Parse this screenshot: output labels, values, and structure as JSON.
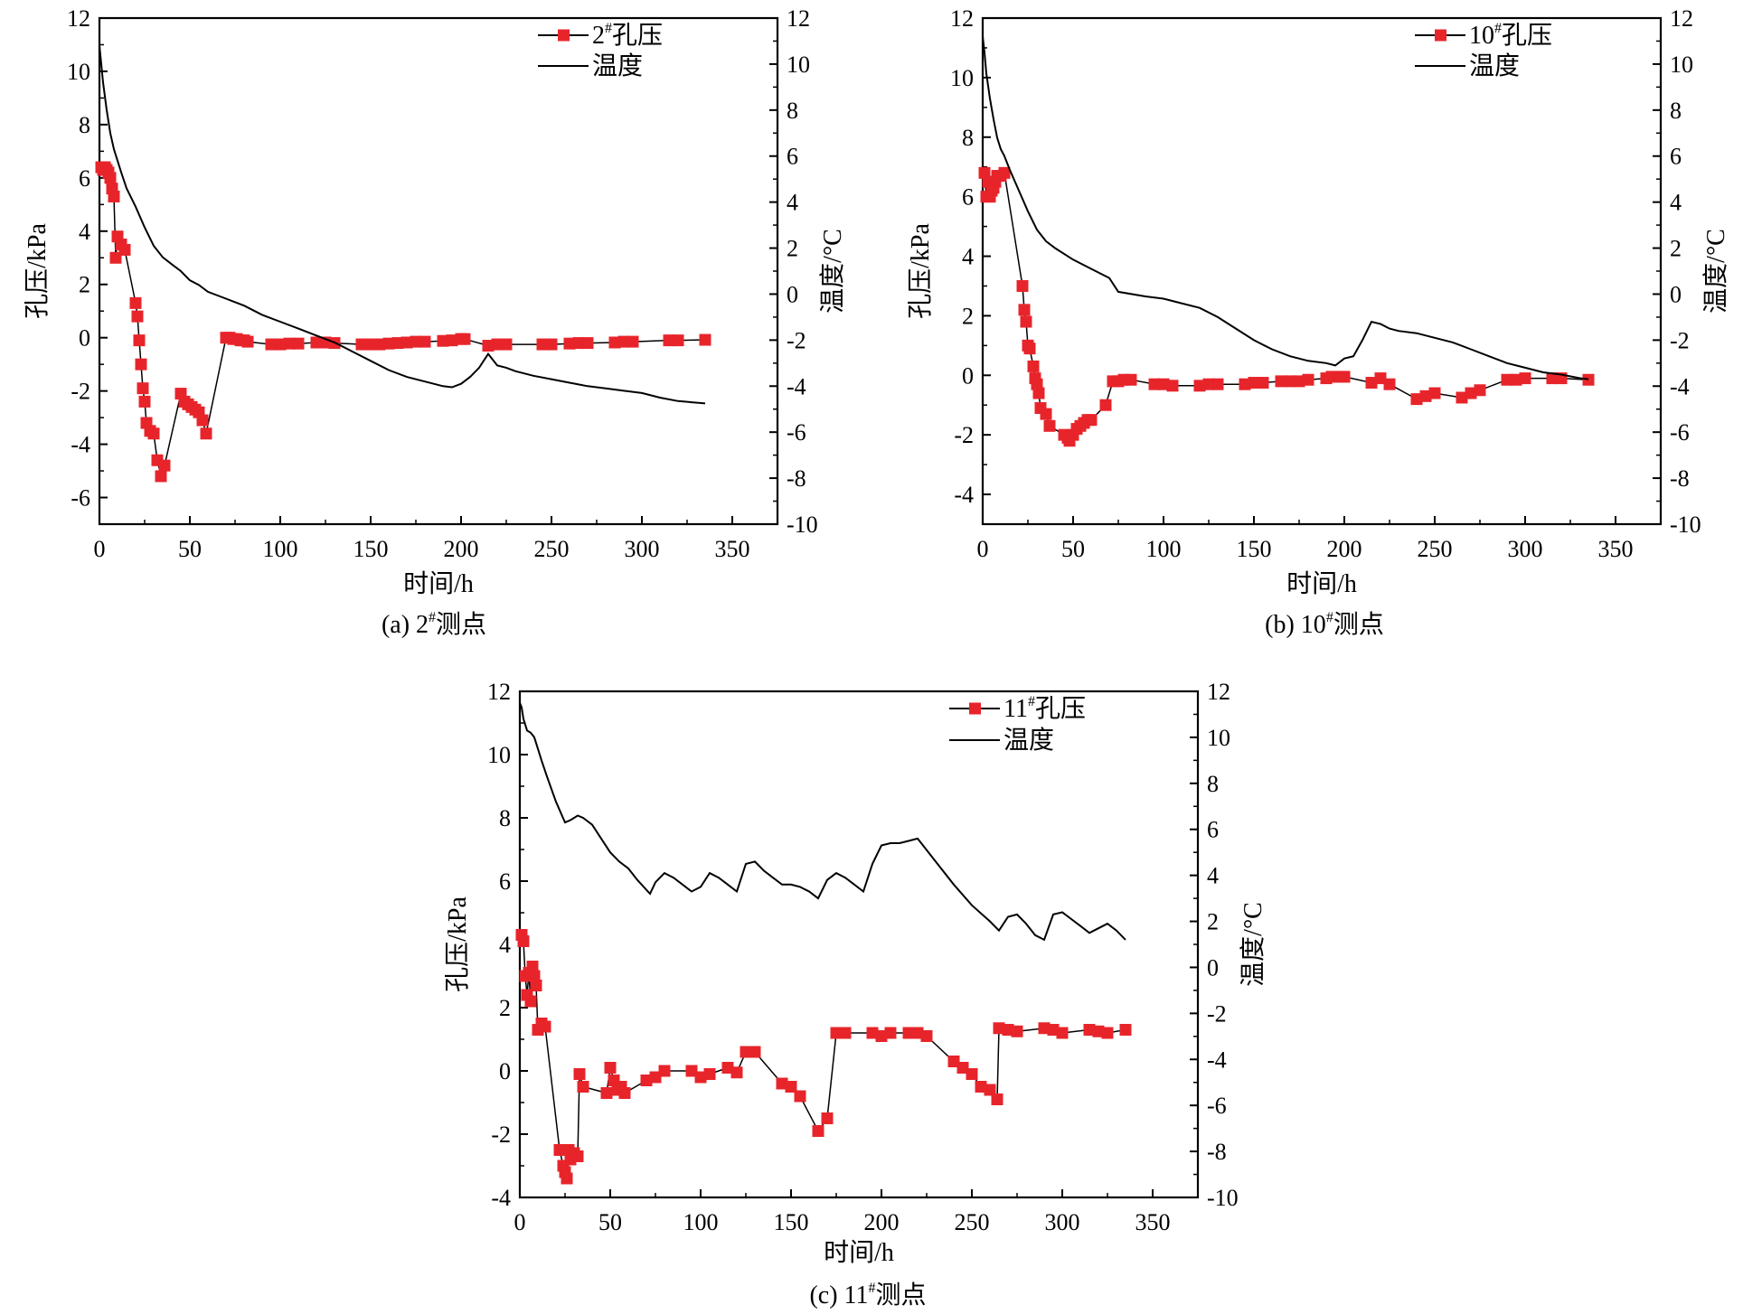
{
  "chart_data": [
    {
      "type": "line",
      "caption": {
        "prefix": "(a) 2",
        "sup": "#",
        "suffix": "测点"
      },
      "xlabel": "时间/h",
      "ylabel_left": "孔压/kPa",
      "ylabel_right": "温度/°C",
      "xlim": [
        0,
        375
      ],
      "xticks": [
        0,
        50,
        100,
        150,
        200,
        250,
        300,
        350
      ],
      "ylim_left": [
        -7,
        12
      ],
      "yticks_left": [
        -6,
        -4,
        -2,
        0,
        2,
        4,
        6,
        8,
        10,
        12
      ],
      "ylim_right": [
        -10,
        12
      ],
      "yticks_right": [
        -10,
        -8,
        -6,
        -4,
        -2,
        0,
        2,
        4,
        6,
        8,
        10,
        12
      ],
      "legend_position": "top-right",
      "series": [
        {
          "name": {
            "prefix": "2",
            "sup": "#",
            "suffix": "孔压"
          },
          "axis": "left",
          "style": "line-square",
          "color": "#e8242b",
          "x": [
            1,
            2,
            3,
            4,
            5,
            6,
            7,
            8,
            9,
            10,
            12,
            14,
            20,
            21,
            22,
            23,
            24,
            25,
            26,
            28,
            30,
            32,
            34,
            36,
            45,
            47,
            49,
            51,
            53,
            55,
            57,
            59,
            70,
            72,
            74,
            76,
            78,
            80,
            82,
            95,
            100,
            105,
            110,
            120,
            125,
            130,
            145,
            150,
            155,
            160,
            165,
            170,
            175,
            180,
            190,
            195,
            200,
            202,
            215,
            220,
            225,
            245,
            250,
            260,
            265,
            270,
            285,
            290,
            295,
            315,
            320,
            335
          ],
          "y": [
            6.4,
            6.3,
            6.4,
            6.3,
            6.2,
            6.0,
            5.6,
            5.3,
            3.0,
            3.8,
            3.5,
            3.3,
            1.3,
            0.8,
            -0.1,
            -1.0,
            -1.9,
            -2.4,
            -3.2,
            -3.5,
            -3.6,
            -4.6,
            -5.2,
            -4.8,
            -2.1,
            -2.4,
            -2.5,
            -2.6,
            -2.7,
            -2.8,
            -3.1,
            -3.6,
            0.0,
            0.0,
            -0.05,
            -0.05,
            -0.1,
            -0.1,
            -0.15,
            -0.25,
            -0.25,
            -0.22,
            -0.22,
            -0.18,
            -0.18,
            -0.2,
            -0.25,
            -0.25,
            -0.25,
            -0.22,
            -0.2,
            -0.18,
            -0.15,
            -0.15,
            -0.12,
            -0.1,
            -0.05,
            -0.05,
            -0.3,
            -0.25,
            -0.25,
            -0.25,
            -0.25,
            -0.22,
            -0.2,
            -0.2,
            -0.18,
            -0.15,
            -0.15,
            -0.1,
            -0.1,
            -0.08
          ]
        },
        {
          "name": {
            "prefix": "",
            "sup": "",
            "suffix": "温度"
          },
          "axis": "right",
          "style": "line",
          "color": "#000000",
          "x": [
            0,
            1,
            2,
            4,
            6,
            8,
            10,
            12,
            15,
            20,
            25,
            30,
            35,
            40,
            45,
            50,
            55,
            60,
            70,
            80,
            90,
            100,
            110,
            120,
            130,
            140,
            150,
            160,
            170,
            180,
            190,
            195,
            200,
            205,
            210,
            215,
            220,
            225,
            230,
            240,
            250,
            260,
            270,
            280,
            290,
            300,
            310,
            320,
            335
          ],
          "y": [
            10.8,
            10.0,
            9.2,
            8.0,
            7.0,
            6.3,
            5.8,
            5.3,
            4.6,
            3.8,
            2.9,
            2.1,
            1.6,
            1.3,
            1.0,
            0.6,
            0.4,
            0.1,
            -0.2,
            -0.5,
            -0.9,
            -1.2,
            -1.5,
            -1.8,
            -2.1,
            -2.5,
            -2.9,
            -3.3,
            -3.6,
            -3.8,
            -4.0,
            -4.05,
            -3.9,
            -3.6,
            -3.2,
            -2.6,
            -3.1,
            -3.2,
            -3.35,
            -3.55,
            -3.7,
            -3.85,
            -4.0,
            -4.1,
            -4.2,
            -4.3,
            -4.5,
            -4.65,
            -4.75
          ]
        }
      ]
    },
    {
      "type": "line",
      "caption": {
        "prefix": "(b) 10",
        "sup": "#",
        "suffix": "测点"
      },
      "xlabel": "时间/h",
      "ylabel_left": "孔压/kPa",
      "ylabel_right": "温度/°C",
      "xlim": [
        0,
        375
      ],
      "xticks": [
        0,
        50,
        100,
        150,
        200,
        250,
        300,
        350
      ],
      "ylim_left": [
        -5,
        12
      ],
      "yticks_left": [
        -4,
        -2,
        0,
        2,
        4,
        6,
        8,
        10,
        12
      ],
      "ylim_right": [
        -10,
        12
      ],
      "yticks_right": [
        -10,
        -8,
        -6,
        -4,
        -2,
        0,
        2,
        4,
        6,
        8,
        10,
        12
      ],
      "legend_position": "top-right",
      "series": [
        {
          "name": {
            "prefix": "10",
            "sup": "#",
            "suffix": "孔压"
          },
          "axis": "left",
          "style": "line-square",
          "color": "#e8242b",
          "x": [
            1,
            2,
            3,
            4,
            5,
            6,
            7,
            8,
            10,
            12,
            22,
            23,
            24,
            25,
            26,
            28,
            29,
            30,
            31,
            32,
            35,
            37,
            45,
            47,
            48,
            50,
            52,
            54,
            56,
            58,
            60,
            68,
            72,
            75,
            78,
            82,
            95,
            100,
            105,
            120,
            125,
            130,
            145,
            150,
            155,
            165,
            170,
            175,
            180,
            190,
            193,
            197,
            200,
            215,
            220,
            225,
            240,
            245,
            250,
            265,
            270,
            275,
            290,
            295,
            300,
            315,
            320,
            335
          ],
          "y": [
            6.8,
            6.0,
            6.5,
            6.0,
            6.2,
            6.3,
            6.5,
            6.7,
            6.7,
            6.8,
            3.0,
            2.2,
            1.8,
            1.0,
            0.9,
            0.3,
            -0.1,
            -0.3,
            -0.6,
            -1.1,
            -1.3,
            -1.7,
            -2.0,
            -2.1,
            -2.2,
            -2.0,
            -1.8,
            -1.7,
            -1.6,
            -1.5,
            -1.5,
            -1.0,
            -0.2,
            -0.2,
            -0.15,
            -0.15,
            -0.3,
            -0.3,
            -0.35,
            -0.35,
            -0.3,
            -0.3,
            -0.3,
            -0.25,
            -0.25,
            -0.2,
            -0.2,
            -0.2,
            -0.15,
            -0.1,
            -0.05,
            -0.05,
            -0.05,
            -0.25,
            -0.1,
            -0.3,
            -0.8,
            -0.7,
            -0.6,
            -0.75,
            -0.6,
            -0.5,
            -0.15,
            -0.15,
            -0.1,
            -0.1,
            -0.1,
            -0.15
          ]
        },
        {
          "name": {
            "prefix": "",
            "sup": "",
            "suffix": "温度"
          },
          "axis": "right",
          "style": "line",
          "color": "#000000",
          "x": [
            0,
            1,
            2,
            4,
            6,
            8,
            10,
            12,
            15,
            20,
            25,
            30,
            35,
            40,
            50,
            60,
            70,
            75,
            90,
            100,
            110,
            120,
            130,
            140,
            150,
            160,
            170,
            180,
            190,
            195,
            200,
            205,
            210,
            215,
            220,
            225,
            230,
            240,
            250,
            260,
            270,
            280,
            290,
            300,
            310,
            320,
            330,
            335
          ],
          "y": [
            11.2,
            10.5,
            9.6,
            8.5,
            7.6,
            6.8,
            6.3,
            6.0,
            5.4,
            4.5,
            3.6,
            2.8,
            2.3,
            2.0,
            1.5,
            1.1,
            0.7,
            0.1,
            -0.1,
            -0.2,
            -0.4,
            -0.6,
            -1.0,
            -1.5,
            -2.0,
            -2.4,
            -2.7,
            -2.9,
            -3.0,
            -3.1,
            -2.8,
            -2.7,
            -2.0,
            -1.2,
            -1.3,
            -1.5,
            -1.6,
            -1.7,
            -1.9,
            -2.1,
            -2.4,
            -2.7,
            -3.0,
            -3.2,
            -3.4,
            -3.5,
            -3.65,
            -3.7
          ]
        }
      ]
    },
    {
      "type": "line",
      "caption": {
        "prefix": "(c) 11",
        "sup": "#",
        "suffix": "测点"
      },
      "xlabel": "时间/h",
      "ylabel_left": "孔压/kPa",
      "ylabel_right": "温度/°C",
      "xlim": [
        0,
        375
      ],
      "xticks": [
        0,
        50,
        100,
        150,
        200,
        250,
        300,
        350
      ],
      "ylim_left": [
        -4,
        12
      ],
      "yticks_left": [
        -4,
        -2,
        0,
        2,
        4,
        6,
        8,
        10,
        12
      ],
      "ylim_right": [
        -10,
        12
      ],
      "yticks_right": [
        -10,
        -8,
        -6,
        -4,
        -2,
        0,
        2,
        4,
        6,
        8,
        10,
        12
      ],
      "legend_position": "top-right",
      "series": [
        {
          "name": {
            "prefix": "11",
            "sup": "#",
            "suffix": "孔压"
          },
          "axis": "left",
          "style": "line-square",
          "color": "#e8242b",
          "x": [
            1,
            2,
            3,
            4,
            5,
            6,
            7,
            8,
            9,
            10,
            12,
            14,
            22,
            24,
            25,
            26,
            27,
            28,
            30,
            32,
            33,
            35,
            48,
            50,
            52,
            54,
            56,
            58,
            70,
            75,
            80,
            95,
            100,
            105,
            115,
            120,
            125,
            130,
            145,
            150,
            155,
            165,
            170,
            175,
            180,
            195,
            200,
            205,
            215,
            220,
            225,
            240,
            245,
            250,
            255,
            260,
            264,
            265,
            270,
            275,
            290,
            295,
            300,
            315,
            320,
            325,
            335
          ],
          "y": [
            4.3,
            4.1,
            3.0,
            2.4,
            3.1,
            2.2,
            3.3,
            3.0,
            2.7,
            1.3,
            1.5,
            1.4,
            -2.5,
            -3.0,
            -3.2,
            -3.4,
            -2.5,
            -2.8,
            -2.6,
            -2.7,
            -0.1,
            -0.5,
            -0.7,
            0.1,
            -0.3,
            -0.6,
            -0.5,
            -0.7,
            -0.3,
            -0.2,
            0.0,
            0.0,
            -0.2,
            -0.1,
            0.1,
            -0.05,
            0.6,
            0.6,
            -0.4,
            -0.5,
            -0.8,
            -1.9,
            -1.5,
            1.2,
            1.2,
            1.2,
            1.1,
            1.2,
            1.2,
            1.2,
            1.1,
            0.3,
            0.1,
            -0.1,
            -0.5,
            -0.6,
            -0.9,
            1.35,
            1.3,
            1.25,
            1.35,
            1.3,
            1.2,
            1.3,
            1.25,
            1.2,
            1.3
          ]
        },
        {
          "name": {
            "prefix": "",
            "sup": "",
            "suffix": "温度"
          },
          "axis": "right",
          "style": "line",
          "color": "#000000",
          "x": [
            0,
            1,
            2,
            4,
            6,
            8,
            10,
            12,
            15,
            20,
            25,
            28,
            30,
            32,
            35,
            40,
            45,
            50,
            55,
            60,
            65,
            72,
            75,
            80,
            85,
            90,
            95,
            100,
            105,
            110,
            115,
            120,
            125,
            130,
            135,
            140,
            145,
            150,
            155,
            160,
            165,
            170,
            175,
            180,
            185,
            190,
            195,
            200,
            205,
            210,
            215,
            220,
            225,
            230,
            240,
            250,
            260,
            265,
            270,
            275,
            280,
            285,
            290,
            295,
            300,
            305,
            310,
            315,
            320,
            325,
            330,
            335
          ],
          "y": [
            11.5,
            11.3,
            10.8,
            10.3,
            10.2,
            10.0,
            9.5,
            9.0,
            8.3,
            7.2,
            6.3,
            6.4,
            6.5,
            6.6,
            6.5,
            6.2,
            5.6,
            5.0,
            4.6,
            4.3,
            3.8,
            3.2,
            3.7,
            4.1,
            3.9,
            3.6,
            3.3,
            3.5,
            4.1,
            3.9,
            3.6,
            3.3,
            4.5,
            4.6,
            4.2,
            3.9,
            3.6,
            3.6,
            3.5,
            3.3,
            3.0,
            3.8,
            4.1,
            3.9,
            3.6,
            3.3,
            4.5,
            5.3,
            5.4,
            5.4,
            5.5,
            5.6,
            5.1,
            4.6,
            3.6,
            2.7,
            2.0,
            1.6,
            2.2,
            2.3,
            1.9,
            1.4,
            1.2,
            2.3,
            2.4,
            2.1,
            1.8,
            1.5,
            1.7,
            1.9,
            1.6,
            1.2
          ]
        }
      ]
    }
  ]
}
